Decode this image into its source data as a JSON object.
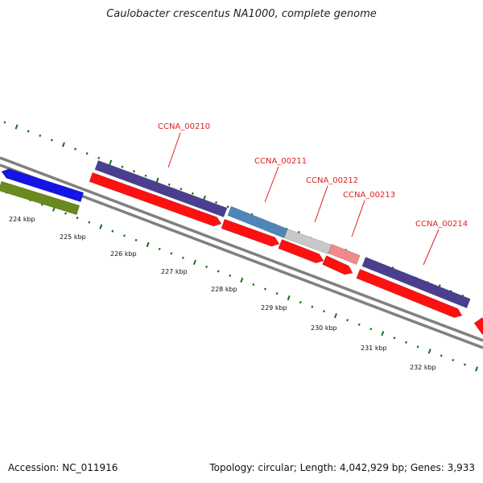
{
  "title": "Caulobacter crescentus NA1000, complete genome",
  "footer": {
    "accession": "Accession: NC_011916",
    "summary": "Topology: circular; Length: 4,042,929 bp; Genes: 3,933"
  },
  "colors": {
    "backbone": "#808080",
    "tick": "#1a6e1a",
    "label": "#e02020",
    "cds": "#ff1010",
    "purple": "#4a3f8f",
    "blue": "#1414e6",
    "green": "#6a8a20",
    "steel": "#4f86b8",
    "gray": "#c8c8c8",
    "pink": "#f08a8a"
  },
  "scale": {
    "labels": [
      "224 kbp",
      "225 kbp",
      "226 kbp",
      "227 kbp",
      "228 kbp",
      "229 kbp",
      "230 kbp",
      "231 kbp",
      "232 kbp"
    ]
  },
  "gene_labels": [
    "CCNA_00210",
    "CCNA_00211",
    "CCNA_00212",
    "CCNA_00213",
    "CCNA_00214"
  ]
}
